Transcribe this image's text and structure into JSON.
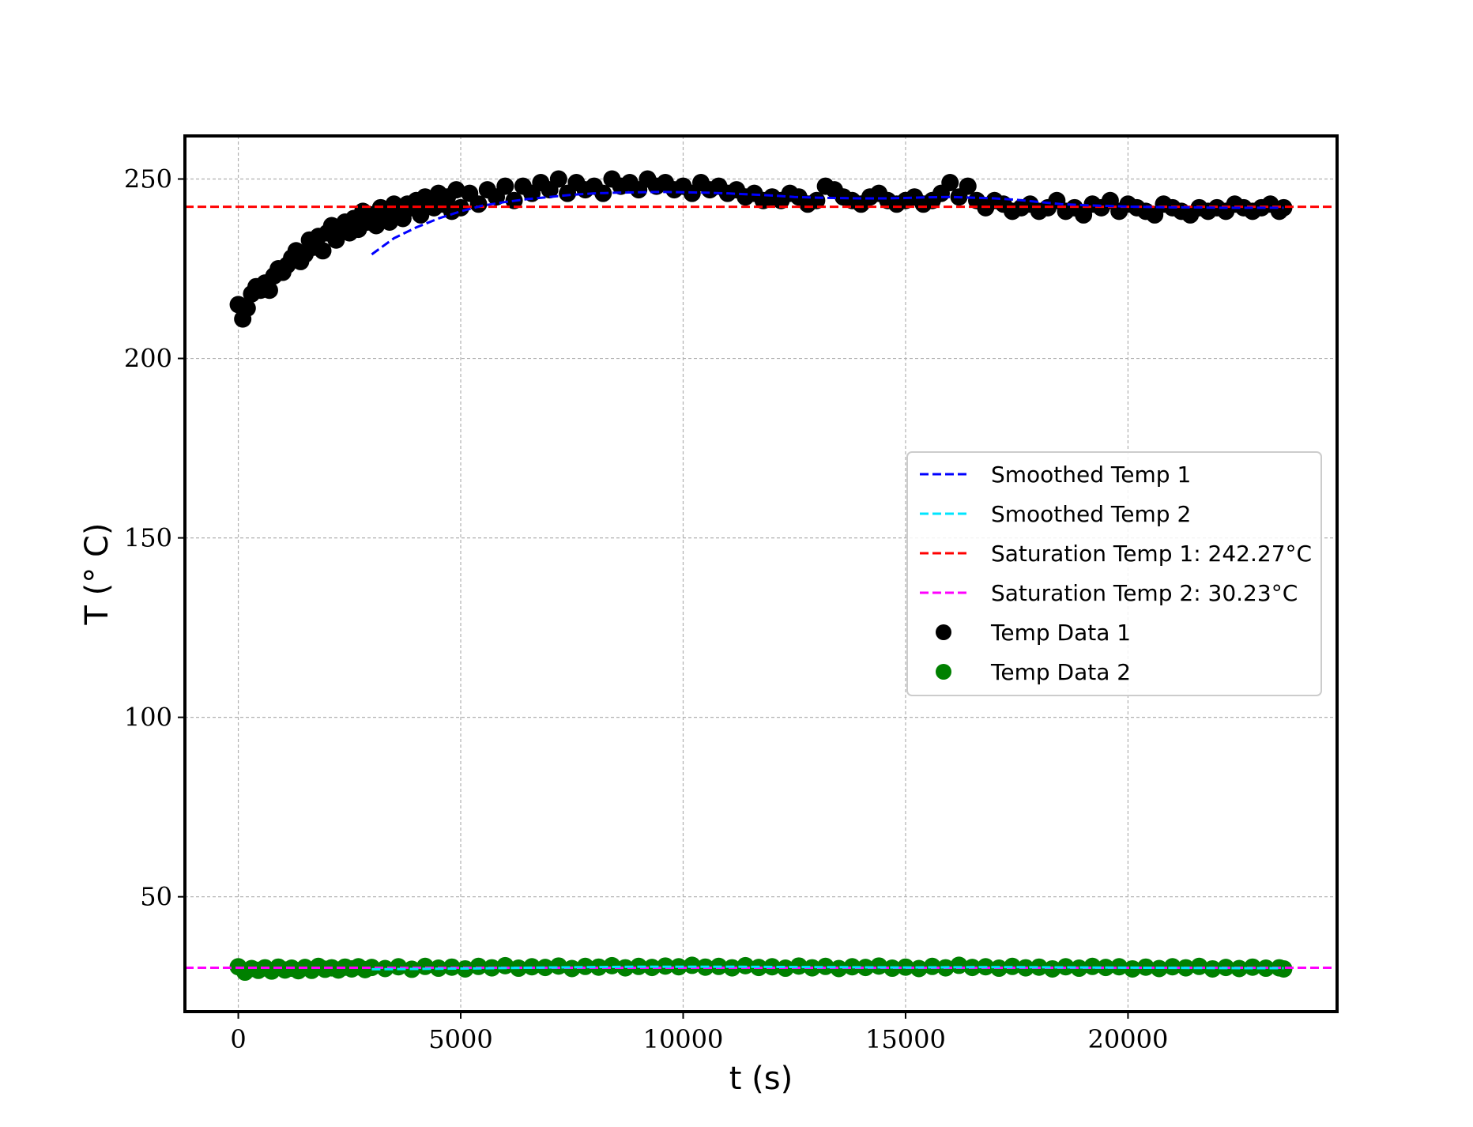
{
  "chart_data": {
    "type": "scatter",
    "title": "",
    "xlabel": "t (s)",
    "ylabel": "T (° C)",
    "xlim": [
      -1200,
      24700
    ],
    "ylim": [
      18,
      262
    ],
    "grid": true,
    "legend_position": "center-right",
    "xticks": [
      0,
      5000,
      10000,
      15000,
      20000
    ],
    "yticks": [
      50,
      100,
      150,
      200,
      250
    ],
    "xtick_labels": [
      "0",
      "5000",
      "10000",
      "15000",
      "20000"
    ],
    "ytick_labels": [
      "50",
      "100",
      "150",
      "200",
      "250"
    ],
    "series": [
      {
        "name": "Smoothed Temp 1",
        "kind": "line",
        "style": "dashed",
        "color": "#0000ff",
        "x": [
          3000,
          3500,
          4000,
          4500,
          5000,
          5500,
          6000,
          6500,
          7000,
          7500,
          8000,
          8500,
          9000,
          9500,
          10000,
          10500,
          11000,
          11500,
          12000,
          12500,
          13000,
          13500,
          14000,
          14500,
          15000,
          15500,
          16000,
          16500,
          17000,
          17500,
          18000,
          18500,
          19000,
          19500,
          20000,
          20500,
          21000,
          21500,
          22000,
          22500,
          23000,
          23500
        ],
        "y": [
          229.0,
          233.5,
          236.5,
          239.0,
          241.0,
          242.6,
          243.6,
          244.4,
          245.0,
          245.6,
          246.0,
          246.2,
          246.3,
          246.4,
          246.3,
          246.2,
          246.0,
          245.7,
          245.4,
          245.0,
          244.8,
          244.7,
          244.6,
          244.6,
          244.7,
          244.9,
          245.0,
          244.8,
          244.6,
          244.2,
          243.6,
          243.0,
          242.7,
          242.5,
          242.3,
          242.2,
          242.1,
          242.1,
          242.0,
          242.0,
          242.0,
          242.0
        ]
      },
      {
        "name": "Smoothed Temp 2",
        "kind": "line",
        "style": "dashed",
        "color": "#00e5ff",
        "x": [
          3000,
          5000,
          7000,
          9000,
          11000,
          13000,
          15000,
          17000,
          19000,
          21000,
          23000,
          23500
        ],
        "y": [
          29.8,
          30.0,
          30.3,
          30.5,
          30.5,
          30.4,
          30.3,
          30.4,
          30.3,
          30.2,
          30.1,
          30.1
        ]
      },
      {
        "name": "Saturation Temp 1: 242.27°C",
        "kind": "hline",
        "style": "dashed",
        "color": "#ff0000",
        "y": 242.27
      },
      {
        "name": "Saturation Temp 2: 30.23°C",
        "kind": "hline",
        "style": "dashed",
        "color": "#ff00ff",
        "y": 30.23
      },
      {
        "name": "Temp Data 1",
        "kind": "scatter",
        "color": "#000000",
        "x": [
          0,
          100,
          200,
          300,
          400,
          500,
          600,
          700,
          800,
          900,
          1000,
          1100,
          1200,
          1300,
          1400,
          1500,
          1600,
          1700,
          1800,
          1900,
          2000,
          2100,
          2200,
          2300,
          2400,
          2500,
          2600,
          2700,
          2800,
          2900,
          3000,
          3100,
          3200,
          3300,
          3400,
          3500,
          3600,
          3700,
          3800,
          3900,
          4000,
          4100,
          4200,
          4300,
          4400,
          4500,
          4600,
          4700,
          4800,
          4900,
          5000,
          5200,
          5400,
          5600,
          5800,
          6000,
          6200,
          6400,
          6600,
          6800,
          7000,
          7200,
          7400,
          7600,
          7800,
          8000,
          8200,
          8400,
          8600,
          8800,
          9000,
          9200,
          9400,
          9600,
          9800,
          10000,
          10200,
          10400,
          10600,
          10800,
          11000,
          11200,
          11400,
          11600,
          11800,
          12000,
          12200,
          12400,
          12600,
          12800,
          13000,
          13200,
          13400,
          13600,
          13800,
          14000,
          14200,
          14400,
          14600,
          14800,
          15000,
          15200,
          15400,
          15600,
          15800,
          16000,
          16200,
          16400,
          16600,
          16800,
          17000,
          17200,
          17400,
          17600,
          17800,
          18000,
          18200,
          18400,
          18600,
          18800,
          19000,
          19200,
          19400,
          19600,
          19800,
          20000,
          20200,
          20400,
          20600,
          20800,
          21000,
          21200,
          21400,
          21600,
          21800,
          22000,
          22200,
          22400,
          22600,
          22800,
          23000,
          23200,
          23400,
          23500
        ],
        "y": [
          215,
          211,
          214,
          218,
          220,
          219,
          221,
          219,
          223,
          225,
          224,
          226,
          228,
          230,
          227,
          229,
          233,
          231,
          234,
          230,
          235,
          237,
          233,
          236,
          238,
          235,
          239,
          236,
          241,
          238,
          240,
          237,
          242,
          240,
          238,
          243,
          241,
          239,
          243,
          242,
          244,
          240,
          245,
          243,
          242,
          246,
          243,
          245,
          241,
          247,
          242,
          246,
          243,
          247,
          245,
          248,
          244,
          248,
          246,
          249,
          247,
          250,
          246,
          249,
          247,
          248,
          246,
          250,
          248,
          249,
          247,
          250,
          248,
          249,
          247,
          248,
          246,
          249,
          247,
          248,
          246,
          247,
          245,
          246,
          244,
          245,
          244,
          246,
          245,
          243,
          244,
          248,
          247,
          245,
          244,
          243,
          245,
          246,
          244,
          243,
          244,
          245,
          243,
          244,
          246,
          249,
          245,
          248,
          244,
          242,
          244,
          243,
          241,
          242,
          243,
          241,
          242,
          244,
          241,
          242,
          240,
          243,
          242,
          244,
          241,
          243,
          242,
          241,
          240,
          243,
          242,
          241,
          240,
          242,
          241,
          242,
          241,
          243,
          242,
          241,
          242,
          243,
          241,
          242
        ]
      },
      {
        "name": "Temp Data 2",
        "kind": "scatter",
        "color": "#008000",
        "x": [
          0,
          150,
          300,
          450,
          600,
          750,
          900,
          1050,
          1200,
          1350,
          1500,
          1650,
          1800,
          1950,
          2100,
          2250,
          2400,
          2550,
          2700,
          2850,
          3000,
          3300,
          3600,
          3900,
          4200,
          4500,
          4800,
          5100,
          5400,
          5700,
          6000,
          6300,
          6600,
          6900,
          7200,
          7500,
          7800,
          8100,
          8400,
          8700,
          9000,
          9300,
          9600,
          9900,
          10200,
          10500,
          10800,
          11100,
          11400,
          11700,
          12000,
          12300,
          12600,
          12900,
          13200,
          13500,
          13800,
          14100,
          14400,
          14700,
          15000,
          15300,
          15600,
          15900,
          16200,
          16500,
          16800,
          17100,
          17400,
          17700,
          18000,
          18300,
          18600,
          18900,
          19200,
          19500,
          19800,
          20100,
          20400,
          20700,
          21000,
          21300,
          21600,
          21900,
          22200,
          22500,
          22800,
          23100,
          23400,
          23500
        ],
        "y": [
          30.5,
          29.0,
          30.0,
          29.5,
          30.2,
          29.3,
          30.4,
          29.6,
          30.1,
          29.4,
          30.3,
          29.5,
          30.6,
          29.8,
          30.2,
          29.6,
          30.4,
          29.9,
          30.5,
          29.7,
          30.3,
          30.0,
          30.5,
          29.8,
          30.6,
          30.1,
          30.4,
          29.9,
          30.6,
          30.2,
          30.8,
          30.1,
          30.5,
          30.3,
          30.7,
          30.0,
          30.6,
          30.4,
          30.8,
          30.2,
          30.6,
          30.3,
          30.7,
          30.5,
          30.9,
          30.4,
          30.6,
          30.2,
          30.8,
          30.3,
          30.5,
          30.1,
          30.7,
          30.2,
          30.6,
          30.0,
          30.5,
          30.3,
          30.7,
          30.1,
          30.4,
          30.0,
          30.6,
          30.2,
          30.9,
          30.3,
          30.5,
          30.1,
          30.6,
          30.2,
          30.4,
          29.9,
          30.5,
          30.1,
          30.6,
          30.3,
          30.5,
          29.9,
          30.4,
          30.0,
          30.5,
          30.2,
          30.6,
          29.9,
          30.3,
          30.0,
          30.4,
          30.1,
          30.2,
          29.9
        ]
      }
    ]
  }
}
